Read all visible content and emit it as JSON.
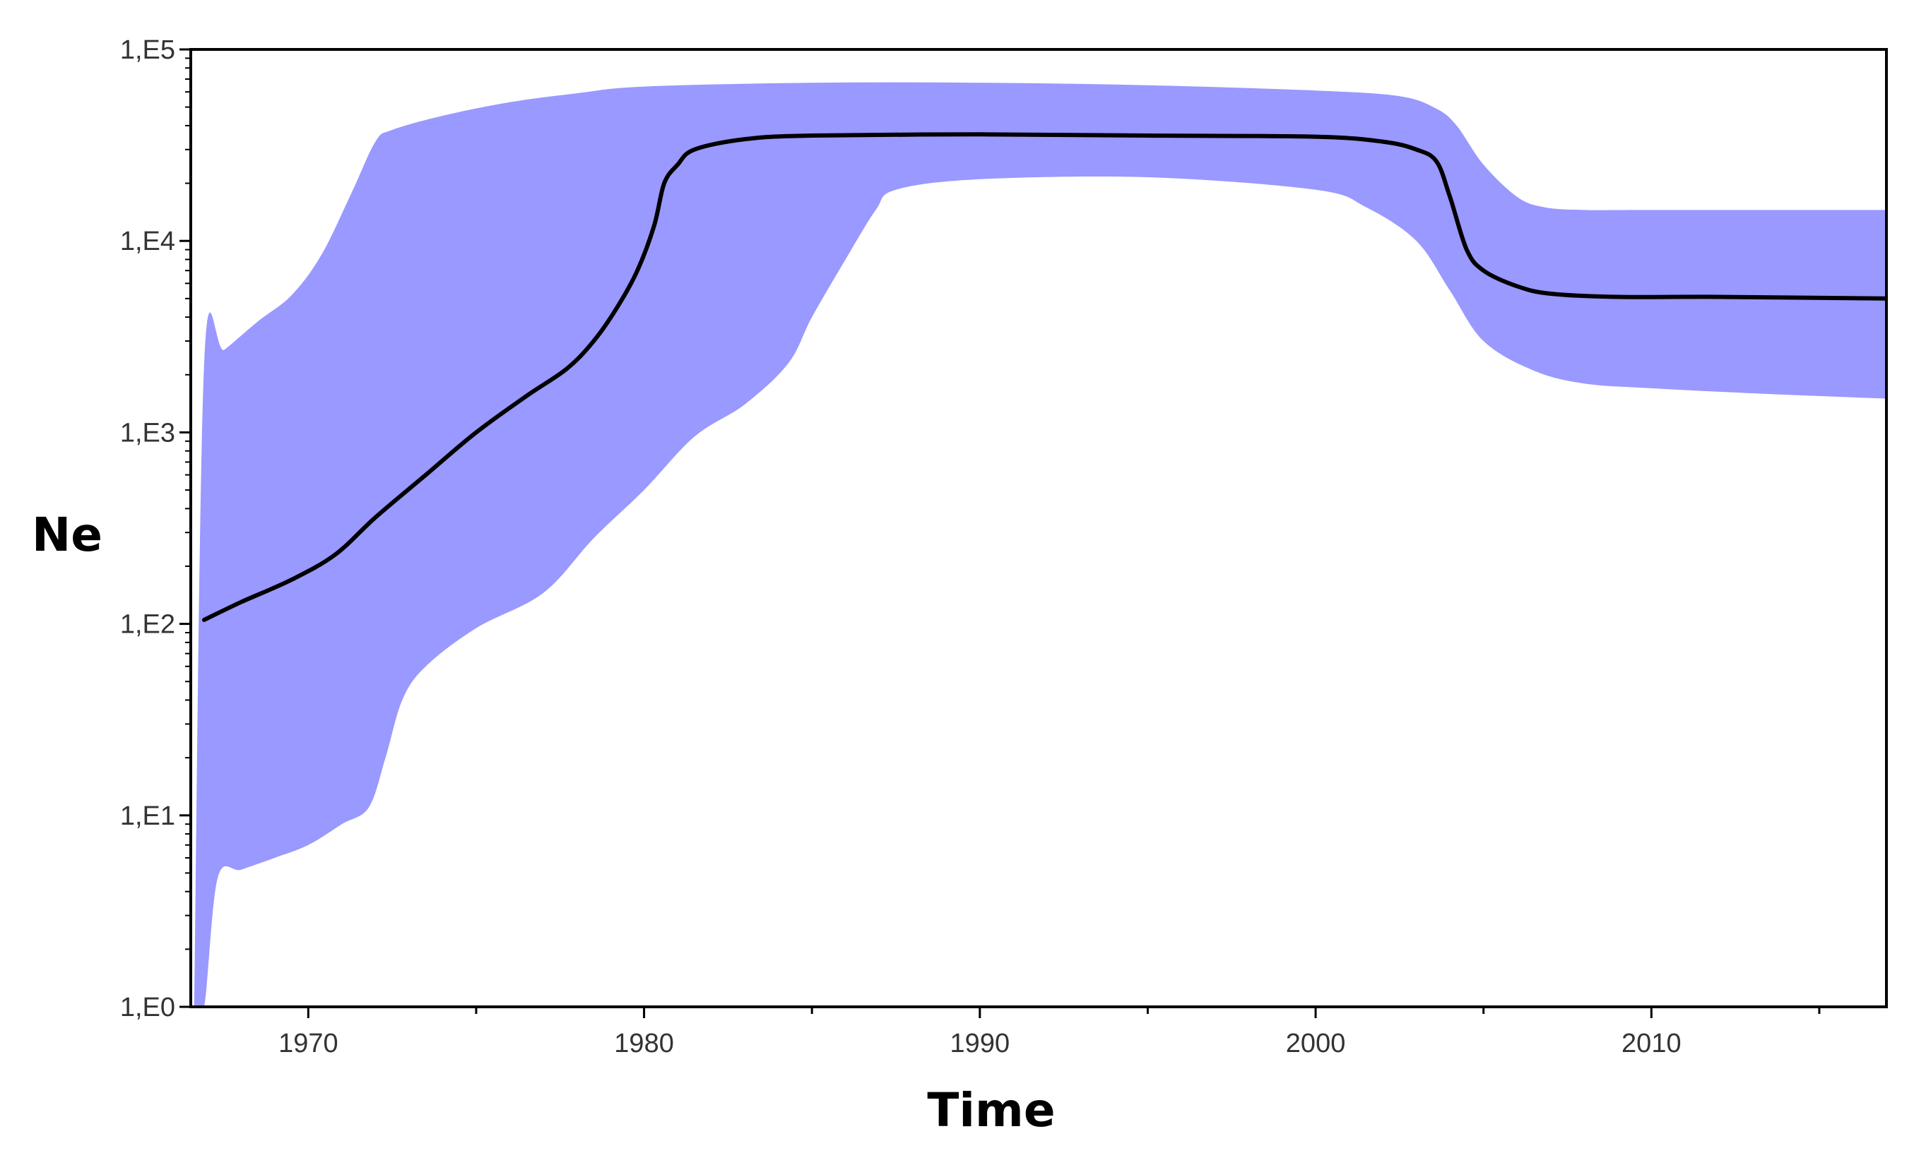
{
  "chart_data": {
    "type": "area",
    "title": "",
    "xlabel": "Time",
    "ylabel": "Ne",
    "y_scale": "log",
    "xlim": [
      1966.5,
      2017
    ],
    "ylim": [
      1,
      100000
    ],
    "x_ticks": [
      1970,
      1980,
      1990,
      2000,
      2010
    ],
    "x_tick_labels": [
      "1970",
      "1980",
      "1990",
      "2000",
      "2010"
    ],
    "y_ticks": [
      1,
      10,
      100,
      1000,
      10000,
      100000
    ],
    "y_tick_labels": [
      "1,E0",
      "1,E1",
      "1,E2",
      "1,E3",
      "1,E4",
      "1,E5"
    ],
    "grid": false,
    "colors": {
      "band": "#9999ff",
      "median": "#000000",
      "axis": "#000000"
    },
    "series": [
      {
        "role": "median",
        "x": [
          1966.9,
          1968,
          1969.5,
          1970.8,
          1972,
          1973.5,
          1975,
          1976.5,
          1977.7,
          1978.5,
          1979.2,
          1979.8,
          1980.3,
          1980.6,
          1981,
          1981.5,
          1983,
          1985,
          1990,
          1995,
          2000,
          2002,
          2003,
          2003.6,
          2004,
          2004.5,
          2005,
          2006,
          2007,
          2009,
          2012,
          2017
        ],
        "y": [
          105,
          130,
          170,
          230,
          360,
          600,
          1000,
          1550,
          2150,
          3000,
          4500,
          7000,
          12000,
          20000,
          25000,
          30000,
          34000,
          35500,
          36000,
          35500,
          35000,
          33000,
          30000,
          26000,
          17000,
          9000,
          7000,
          5800,
          5300,
          5100,
          5100,
          5000
        ]
      },
      {
        "role": "upper",
        "x": [
          1966.6,
          1966.9,
          1967.5,
          1968.5,
          1969.5,
          1970.4,
          1971.3,
          1972,
          1972.5,
          1974,
          1976,
          1978,
          1980,
          1985,
          1990,
          1995,
          2000,
          2002.5,
          2003.6,
          2004.2,
          2005,
          2006,
          2006.8,
          2008,
          2010,
          2017
        ],
        "y": [
          1,
          2300,
          2700,
          3800,
          5200,
          8500,
          18000,
          33000,
          38000,
          45000,
          53000,
          59000,
          64000,
          67000,
          67000,
          65000,
          61000,
          57000,
          49000,
          40000,
          25000,
          17000,
          15000,
          14500,
          14500,
          14500
        ]
      },
      {
        "role": "lower",
        "x": [
          1966.6,
          1966.9,
          1967.3,
          1968,
          1969,
          1970,
          1971,
          1971.8,
          1972.3,
          1972.8,
          1973.5,
          1975,
          1977,
          1978.5,
          1980,
          1981.5,
          1983,
          1984.3,
          1985,
          1986,
          1986.9,
          1987.5,
          1990,
          1995,
          2000,
          2001.5,
          2003,
          2004,
          2005,
          2006.5,
          2008,
          2010,
          2013,
          2017
        ],
        "y": [
          1,
          1,
          4.7,
          5.2,
          6,
          7,
          9,
          11,
          20,
          40,
          60,
          95,
          145,
          280,
          500,
          950,
          1400,
          2300,
          4000,
          8000,
          14500,
          18500,
          21000,
          21500,
          18500,
          15000,
          10000,
          5500,
          3000,
          2100,
          1800,
          1700,
          1600,
          1500
        ]
      }
    ]
  }
}
